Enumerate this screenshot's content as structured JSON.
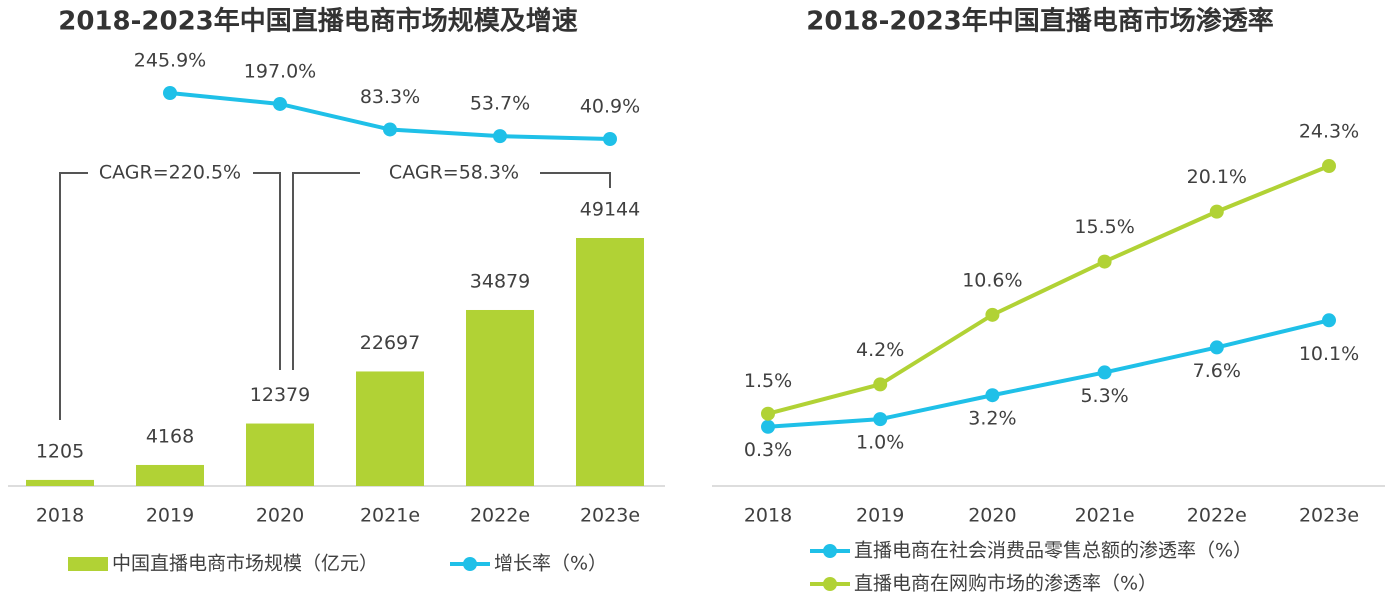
{
  "chart_data": [
    {
      "type": "bar",
      "title": "2018-2023年中国直播电商市场规模及增速",
      "categories": [
        "2018",
        "2019",
        "2020",
        "2021e",
        "2022e",
        "2023e"
      ],
      "series": [
        {
          "name": "中国直播电商市场规模（亿元）",
          "color": "#b1d235",
          "values": [
            1205,
            4168,
            12379,
            22697,
            34879,
            49144
          ]
        },
        {
          "name": "增长率（%）",
          "color": "#1fc0e8",
          "type": "line",
          "values": [
            null,
            245.9,
            197.0,
            83.3,
            53.7,
            40.9
          ],
          "value_labels": [
            null,
            "245.9%",
            "197.0%",
            "83.3%",
            "53.7%",
            "40.9%"
          ]
        }
      ],
      "annotations": [
        "CAGR=220.5%",
        "CAGR=58.3%"
      ]
    },
    {
      "type": "line",
      "title": "2018-2023年中国直播电商市场渗透率",
      "categories": [
        "2018",
        "2019",
        "2020",
        "2021e",
        "2022e",
        "2023e"
      ],
      "series": [
        {
          "name": "直播电商在社会消费品零售总额的渗透率（%）",
          "color": "#1fc0e8",
          "values": [
            0.3,
            1.0,
            3.2,
            5.3,
            7.6,
            10.1
          ],
          "value_labels": [
            "0.3%",
            "1.0%",
            "3.2%",
            "5.3%",
            "7.6%",
            "10.1%"
          ]
        },
        {
          "name": "直播电商在网购市场的渗透率（%）",
          "color": "#b1d235",
          "values": [
            1.5,
            4.2,
            10.6,
            15.5,
            20.1,
            24.3
          ],
          "value_labels": [
            "1.5%",
            "4.2%",
            "10.6%",
            "15.5%",
            "20.1%",
            "24.3%"
          ]
        }
      ]
    }
  ]
}
